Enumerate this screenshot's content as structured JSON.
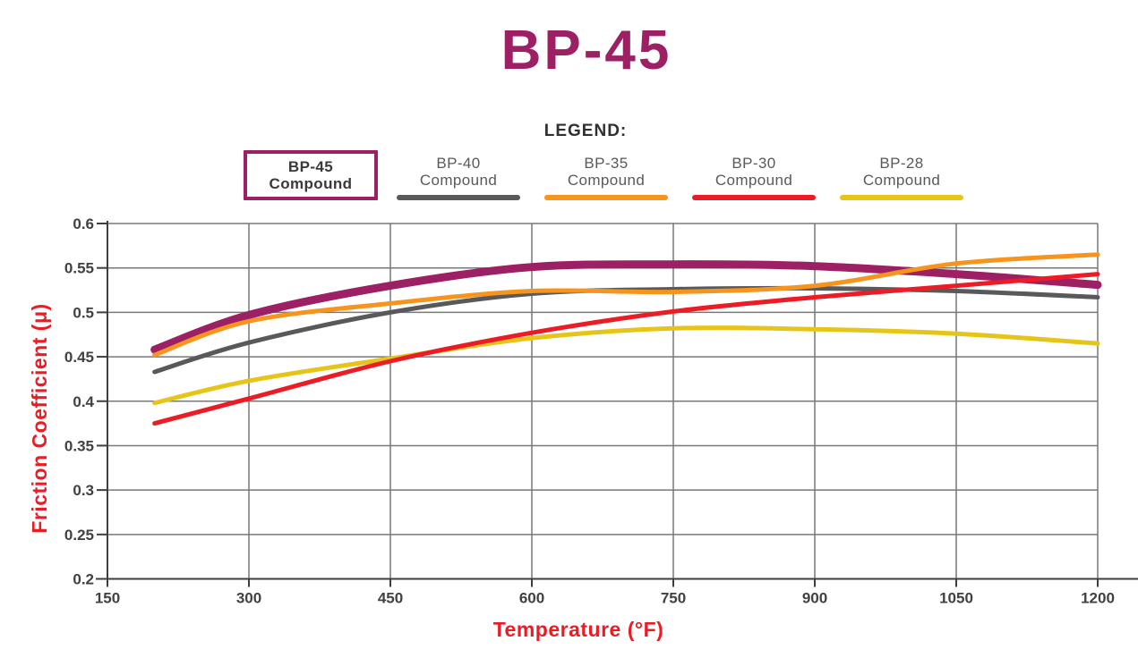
{
  "title": "BP-45",
  "title_color": "#9c2063",
  "legend": {
    "title": "LEGEND:",
    "items": [
      {
        "label_top": "BP-45",
        "label_bottom": "Compound",
        "color": "#9c2063",
        "selected": true
      },
      {
        "label_top": "BP-40",
        "label_bottom": "Compound",
        "color": "#58595b",
        "selected": false
      },
      {
        "label_top": "BP-35",
        "label_bottom": "Compound",
        "color": "#f7941e",
        "selected": false
      },
      {
        "label_top": "BP-30",
        "label_bottom": "Compound",
        "color": "#ec1c24",
        "selected": false
      },
      {
        "label_top": "BP-28",
        "label_bottom": "Compound",
        "color": "#e7c518",
        "selected": false
      }
    ]
  },
  "chart_data": {
    "type": "line",
    "title": "BP-45",
    "xlabel": "Temperature (°F)",
    "ylabel": "Friction Coefficient (μ)",
    "xlim": [
      150,
      1200
    ],
    "ylim": [
      0.2,
      0.6
    ],
    "x_ticks": [
      150,
      300,
      450,
      600,
      750,
      900,
      1050,
      1200
    ],
    "y_ticks": [
      0.2,
      0.25,
      0.3,
      0.35,
      0.4,
      0.45,
      0.5,
      0.55,
      0.6
    ],
    "grid": true,
    "legend_position": "top",
    "x": [
      200,
      300,
      450,
      600,
      750,
      900,
      1050,
      1200
    ],
    "series": [
      {
        "name": "BP-45 Compound",
        "color": "#9c2063",
        "stroke_width": 9,
        "values": [
          0.458,
          0.497,
          0.53,
          0.551,
          0.554,
          0.552,
          0.543,
          0.531
        ]
      },
      {
        "name": "BP-40 Compound",
        "color": "#58595b",
        "stroke_width": 5,
        "values": [
          0.433,
          0.466,
          0.5,
          0.521,
          0.526,
          0.527,
          0.524,
          0.517
        ]
      },
      {
        "name": "BP-35 Compound",
        "color": "#f7941e",
        "stroke_width": 5,
        "values": [
          0.452,
          0.49,
          0.51,
          0.524,
          0.523,
          0.53,
          0.555,
          0.565
        ]
      },
      {
        "name": "BP-30 Compound",
        "color": "#ec1c24",
        "stroke_width": 5,
        "values": [
          0.375,
          0.403,
          0.445,
          0.477,
          0.501,
          0.517,
          0.53,
          0.543
        ]
      },
      {
        "name": "BP-28 Compound",
        "color": "#e7c518",
        "stroke_width": 5,
        "values": [
          0.398,
          0.423,
          0.448,
          0.471,
          0.482,
          0.481,
          0.476,
          0.465
        ]
      }
    ],
    "draw_order": [
      4,
      1,
      0,
      2,
      3
    ],
    "axis_color": "#3e3e40",
    "grid_color": "#77787b",
    "tick_label_color": "#414042",
    "axis_title_color": "#ec1c24"
  }
}
